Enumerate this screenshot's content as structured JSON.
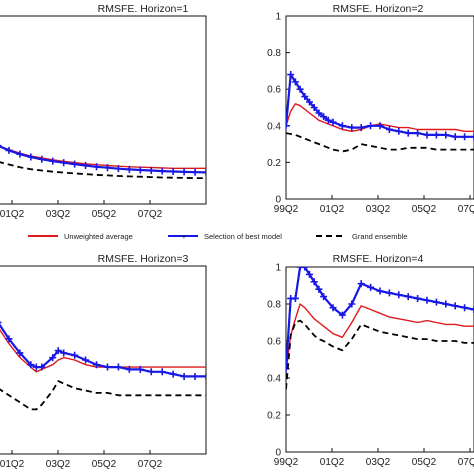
{
  "colors": {
    "unweighted": "#e0191d",
    "selection": "#1717e6",
    "ensemble": "#000000"
  },
  "legend": {
    "placement": "between-rows",
    "entries": [
      "Unweighted average",
      "Selection of best model",
      "Grand ensemble"
    ]
  },
  "chart_data": [
    {
      "type": "line",
      "title": "RMSFE. Horizon=1",
      "x_ticks": [
        "01Q2",
        "03Q2",
        "05Q2",
        "07Q2"
      ],
      "y_ticks": [],
      "xlim": [
        0,
        38
      ],
      "ylim": [
        0,
        1
      ],
      "grid": false,
      "series": [
        {
          "name": "Unweighted average",
          "x": [
            0,
            2,
            4,
            6,
            8,
            10,
            12,
            14,
            16,
            18,
            20,
            22,
            24,
            26,
            28,
            30,
            32,
            34,
            36,
            38
          ],
          "values": [
            0.31,
            0.29,
            0.27,
            0.255,
            0.245,
            0.235,
            0.227,
            0.22,
            0.214,
            0.209,
            0.205,
            0.201,
            0.198,
            0.196,
            0.194,
            0.192,
            0.19,
            0.19,
            0.19,
            0.19
          ]
        },
        {
          "name": "Selection of best model",
          "x": [
            0,
            2,
            4,
            6,
            8,
            10,
            12,
            14,
            16,
            18,
            20,
            22,
            24,
            26,
            28,
            30,
            32,
            34,
            36,
            38
          ],
          "values": [
            0.31,
            0.285,
            0.265,
            0.25,
            0.238,
            0.228,
            0.22,
            0.212,
            0.205,
            0.198,
            0.193,
            0.188,
            0.184,
            0.181,
            0.178,
            0.175,
            0.173,
            0.171,
            0.169,
            0.168
          ]
        },
        {
          "name": "Grand ensemble",
          "x": [
            0,
            2,
            4,
            6,
            8,
            10,
            12,
            14,
            16,
            18,
            20,
            22,
            24,
            26,
            28,
            30,
            32,
            34,
            36,
            38
          ],
          "values": [
            0.225,
            0.21,
            0.195,
            0.185,
            0.178,
            0.172,
            0.167,
            0.163,
            0.159,
            0.155,
            0.152,
            0.149,
            0.147,
            0.145,
            0.143,
            0.141,
            0.14,
            0.139,
            0.138,
            0.138
          ]
        }
      ]
    },
    {
      "type": "line",
      "title": "RMSFE. Horizon=2",
      "x_ticks": [
        "99Q2",
        "01Q2",
        "03Q2",
        "05Q2",
        "07Q2"
      ],
      "y_ticks": [
        "0",
        "0.2",
        "0.4",
        "0.6",
        "0.8",
        "1"
      ],
      "xlim": [
        0,
        40
      ],
      "ylim": [
        0,
        1
      ],
      "grid": false,
      "series": [
        {
          "name": "Unweighted average",
          "x": [
            0,
            1,
            2,
            3,
            4,
            5,
            6,
            7,
            8,
            9,
            10,
            12,
            14,
            16,
            18,
            20,
            22,
            24,
            26,
            28,
            30,
            32,
            34,
            36,
            38,
            40
          ],
          "values": [
            0.4,
            0.48,
            0.52,
            0.51,
            0.49,
            0.47,
            0.45,
            0.43,
            0.42,
            0.41,
            0.4,
            0.38,
            0.37,
            0.38,
            0.4,
            0.41,
            0.4,
            0.39,
            0.39,
            0.38,
            0.38,
            0.38,
            0.38,
            0.38,
            0.37,
            0.37
          ]
        },
        {
          "name": "Selection of best model",
          "x": [
            0,
            1,
            2,
            3,
            4,
            5,
            6,
            7,
            8,
            9,
            10,
            12,
            14,
            16,
            18,
            20,
            22,
            24,
            26,
            28,
            30,
            32,
            34,
            36,
            38,
            40
          ],
          "values": [
            0.4,
            0.68,
            0.64,
            0.6,
            0.56,
            0.53,
            0.5,
            0.47,
            0.45,
            0.43,
            0.42,
            0.4,
            0.39,
            0.39,
            0.4,
            0.4,
            0.38,
            0.37,
            0.36,
            0.36,
            0.35,
            0.35,
            0.35,
            0.34,
            0.34,
            0.34
          ]
        },
        {
          "name": "Grand ensemble",
          "x": [
            0,
            2,
            4,
            6,
            8,
            10,
            12,
            14,
            16,
            18,
            20,
            22,
            24,
            26,
            28,
            30,
            32,
            34,
            36,
            38,
            40
          ],
          "values": [
            0.36,
            0.35,
            0.33,
            0.31,
            0.29,
            0.27,
            0.26,
            0.27,
            0.3,
            0.29,
            0.28,
            0.27,
            0.27,
            0.28,
            0.28,
            0.28,
            0.27,
            0.27,
            0.27,
            0.27,
            0.27
          ]
        }
      ]
    },
    {
      "type": "line",
      "title": "RMSFE. Horizon=3",
      "x_ticks": [
        "01Q2",
        "03Q2",
        "05Q2",
        "07Q2"
      ],
      "y_ticks": [],
      "xlim": [
        0,
        38
      ],
      "ylim": [
        0.2,
        1
      ],
      "grid": false,
      "series": [
        {
          "name": "Unweighted average",
          "x": [
            0,
            2,
            4,
            6,
            7,
            8,
            10,
            11,
            12,
            14,
            16,
            18,
            20,
            22,
            24,
            26,
            28,
            30,
            32,
            34,
            36,
            38
          ],
          "values": [
            0.74,
            0.67,
            0.61,
            0.57,
            0.55,
            0.56,
            0.58,
            0.6,
            0.61,
            0.6,
            0.58,
            0.57,
            0.57,
            0.57,
            0.57,
            0.57,
            0.57,
            0.57,
            0.57,
            0.57,
            0.57,
            0.57
          ]
        },
        {
          "name": "Selection of best model",
          "x": [
            0,
            2,
            4,
            6,
            7,
            8,
            10,
            11,
            12,
            14,
            16,
            18,
            20,
            22,
            24,
            26,
            28,
            30,
            32,
            34,
            36,
            38
          ],
          "values": [
            0.76,
            0.69,
            0.63,
            0.58,
            0.57,
            0.57,
            0.61,
            0.64,
            0.63,
            0.62,
            0.6,
            0.58,
            0.57,
            0.57,
            0.56,
            0.56,
            0.55,
            0.55,
            0.54,
            0.53,
            0.53,
            0.53
          ]
        },
        {
          "name": "Grand ensemble",
          "x": [
            0,
            2,
            4,
            6,
            7,
            8,
            10,
            11,
            12,
            14,
            16,
            18,
            20,
            22,
            24,
            26,
            28,
            30,
            32,
            34,
            36,
            38
          ],
          "values": [
            0.48,
            0.45,
            0.42,
            0.39,
            0.39,
            0.41,
            0.47,
            0.51,
            0.5,
            0.48,
            0.47,
            0.46,
            0.46,
            0.45,
            0.45,
            0.45,
            0.45,
            0.45,
            0.45,
            0.45,
            0.45,
            0.45
          ]
        }
      ]
    },
    {
      "type": "line",
      "title": "RMSFE. Horizon=4",
      "x_ticks": [
        "99Q2",
        "01Q2",
        "03Q2",
        "05Q2",
        "07Q2"
      ],
      "y_ticks": [
        "0",
        "0.2",
        "0.4",
        "0.6",
        "0.8",
        "1"
      ],
      "xlim": [
        0,
        40
      ],
      "ylim": [
        0,
        1
      ],
      "grid": false,
      "series": [
        {
          "name": "Unweighted average",
          "x": [
            0,
            1,
            2,
            3,
            4,
            5,
            6,
            7,
            8,
            10,
            12,
            14,
            16,
            18,
            20,
            22,
            24,
            26,
            28,
            30,
            32,
            34,
            36,
            38,
            40
          ],
          "values": [
            0.44,
            0.63,
            0.72,
            0.8,
            0.78,
            0.75,
            0.72,
            0.7,
            0.68,
            0.64,
            0.62,
            0.7,
            0.79,
            0.77,
            0.75,
            0.73,
            0.72,
            0.71,
            0.7,
            0.71,
            0.7,
            0.69,
            0.69,
            0.68,
            0.68
          ]
        },
        {
          "name": "Selection of best model",
          "x": [
            0,
            1,
            2,
            3,
            4,
            5,
            6,
            7,
            8,
            10,
            12,
            14,
            16,
            18,
            20,
            22,
            24,
            26,
            28,
            30,
            32,
            34,
            36,
            38,
            40
          ],
          "values": [
            0.45,
            0.83,
            0.83,
            1.0,
            1.0,
            0.96,
            0.92,
            0.88,
            0.84,
            0.78,
            0.74,
            0.8,
            0.91,
            0.89,
            0.87,
            0.86,
            0.85,
            0.84,
            0.83,
            0.82,
            0.81,
            0.8,
            0.79,
            0.78,
            0.77
          ]
        },
        {
          "name": "Grand ensemble",
          "x": [
            0,
            1,
            2,
            3,
            4,
            5,
            6,
            7,
            8,
            10,
            12,
            14,
            16,
            18,
            20,
            22,
            24,
            26,
            28,
            30,
            32,
            34,
            36,
            38,
            40
          ],
          "values": [
            0.34,
            0.63,
            0.7,
            0.71,
            0.69,
            0.66,
            0.63,
            0.61,
            0.6,
            0.57,
            0.55,
            0.61,
            0.69,
            0.67,
            0.65,
            0.64,
            0.63,
            0.62,
            0.61,
            0.61,
            0.6,
            0.6,
            0.6,
            0.59,
            0.59
          ]
        }
      ]
    }
  ]
}
